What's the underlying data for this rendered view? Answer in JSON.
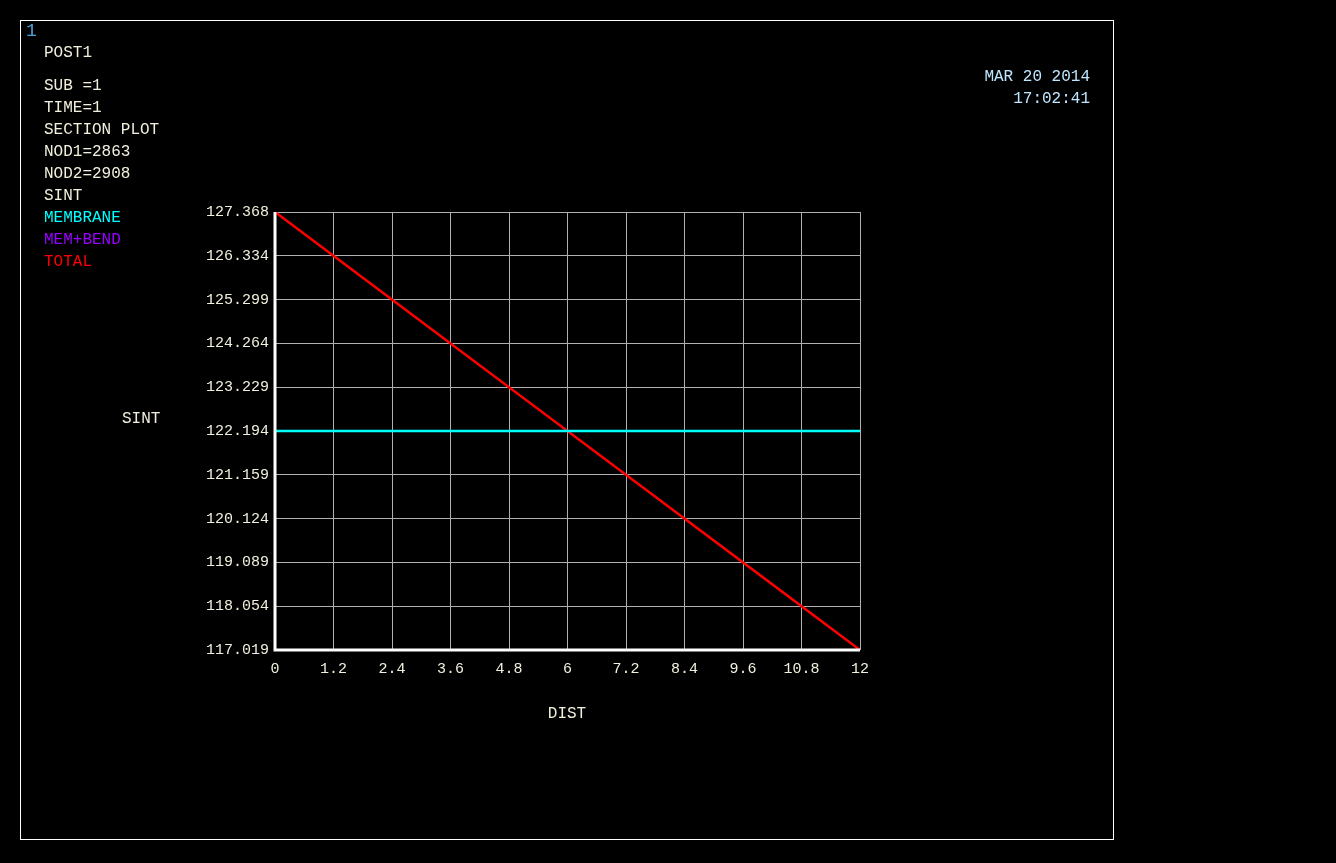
{
  "chart_data": {
    "type": "line",
    "xlabel": "DIST",
    "ylabel": "SINT",
    "legend_title": "SINT",
    "annotations": [
      "1",
      "POST1",
      "SUB =1",
      "TIME=1",
      "SECTION PLOT",
      "NOD1=2863",
      "NOD2=2908",
      "MAR 20 2014",
      "17:02:41"
    ],
    "x": [
      0,
      12
    ],
    "series": [
      {
        "name": "MEMBRANE",
        "color": "#00ffff",
        "values": [
          122.194,
          122.194
        ]
      },
      {
        "name": "MEM+BEND",
        "color": "#9900ff",
        "values": [
          null,
          null
        ]
      },
      {
        "name": "TOTAL",
        "color": "#ff0000",
        "values": [
          127.368,
          117.019
        ]
      }
    ],
    "xlim": [
      0,
      12
    ],
    "xticks": [
      0,
      1.2,
      2.4,
      3.6,
      4.8,
      6,
      7.2,
      8.4,
      9.6,
      10.8,
      12
    ],
    "ylim": [
      117.019,
      127.368
    ],
    "yticks": [
      117.019,
      118.054,
      119.089,
      120.124,
      121.159,
      122.194,
      123.229,
      124.264,
      125.299,
      126.334,
      127.368
    ],
    "grid": true,
    "legend": "top left",
    "marker": "none",
    "line_style": "solid"
  }
}
